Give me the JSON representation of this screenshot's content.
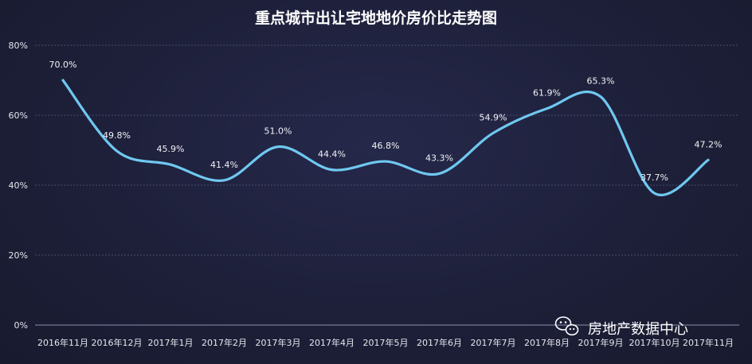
{
  "chart_data": {
    "type": "line",
    "title": "重点城市出让宅地地价房价比走势图",
    "categories": [
      "2016年11月",
      "2016年12月",
      "2017年1月",
      "2017年2月",
      "2017年3月",
      "2017年4月",
      "2017年5月",
      "2017年6月",
      "2017年7月",
      "2017年8月",
      "2017年9月",
      "2017年10月",
      "2017年11月"
    ],
    "series": [
      {
        "values": [
          70.0,
          49.8,
          45.9,
          41.4,
          51.0,
          44.4,
          46.8,
          43.3,
          54.9,
          61.9,
          65.3,
          37.7,
          47.2
        ],
        "labels": [
          "70.0%",
          "49.8%",
          "45.9%",
          "41.4%",
          "51.0%",
          "44.4%",
          "46.8%",
          "43.3%",
          "54.9%",
          "61.9%",
          "65.3%",
          "37.7%",
          "47.2%"
        ],
        "color": "#6fc8f0"
      }
    ],
    "ylim": [
      0,
      80
    ],
    "yticks": [
      0,
      20,
      40,
      60,
      80
    ],
    "ytick_labels": [
      "0%",
      "20%",
      "40%",
      "60%",
      "80%"
    ],
    "grid": true,
    "legend": "none"
  },
  "watermark": {
    "text": "房地产数据中心",
    "icon": "wechat-icon"
  },
  "colors": {
    "background": "#1d1f38",
    "line": "#6fc8f0",
    "text": "#ffffff"
  }
}
